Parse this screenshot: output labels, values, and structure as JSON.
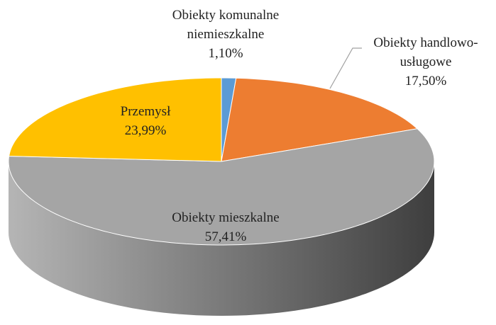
{
  "chart_data": {
    "type": "pie",
    "categories": [
      "Obiekty komunalne niemieszkalne",
      "Obiekty handlowo-usługowe",
      "Obiekty mieszkalne",
      "Przemysł"
    ],
    "values": [
      1.1,
      17.5,
      57.41,
      23.99
    ],
    "value_labels": [
      "1,10%",
      "17,50%",
      "57,41%",
      "23,99%"
    ],
    "colors": [
      "#5b9bd5",
      "#ed7d31",
      "#a5a5a5",
      "#ffc000"
    ]
  }
}
